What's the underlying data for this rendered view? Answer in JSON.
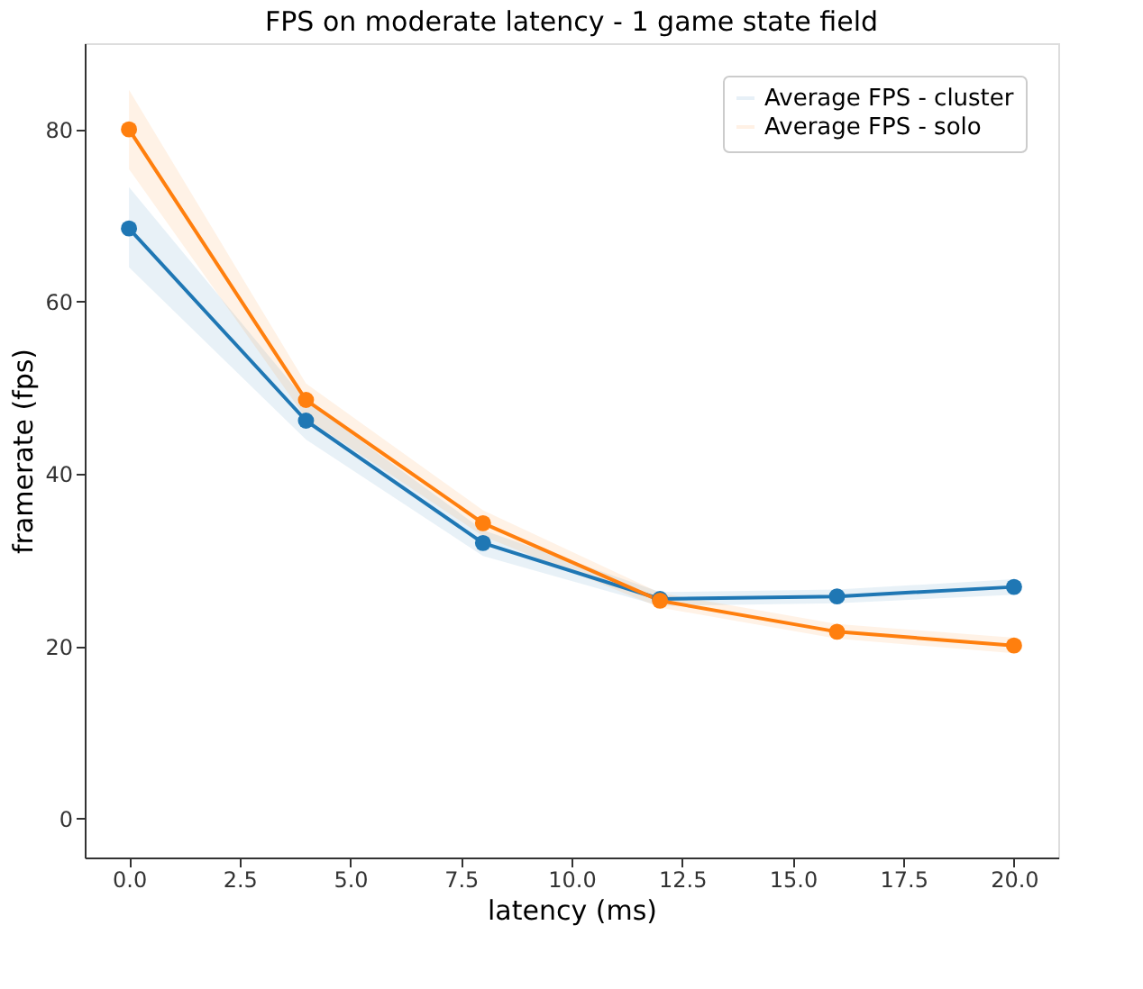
{
  "chart_data": {
    "type": "line",
    "title": "FPS on moderate latency - 1 game state field",
    "xlabel": "latency (ms)",
    "ylabel": "framerate (fps)",
    "x": [
      0,
      4,
      8,
      12,
      16,
      20
    ],
    "series": [
      {
        "name": "Average FPS - cluster",
        "color": "#1f77b4",
        "values": [
          68.5,
          46.2,
          32.0,
          25.5,
          25.8,
          26.9
        ],
        "lower": [
          64.0,
          44.0,
          30.5,
          24.7,
          25.0,
          26.0
        ],
        "upper": [
          73.3,
          48.5,
          33.5,
          26.3,
          26.6,
          27.8
        ]
      },
      {
        "name": "Average FPS - solo",
        "color": "#ff7f0e",
        "values": [
          80.0,
          48.6,
          34.3,
          25.3,
          21.7,
          20.1
        ],
        "lower": [
          75.4,
          46.5,
          32.8,
          24.5,
          20.9,
          19.2
        ],
        "upper": [
          84.6,
          50.5,
          35.8,
          26.2,
          22.6,
          21.0
        ]
      }
    ],
    "xlim": [
      -1,
      21
    ],
    "ylim": [
      -4.5,
      90
    ],
    "xticks": [
      {
        "value": 0,
        "label": "0.0"
      },
      {
        "value": 2.5,
        "label": "2.5"
      },
      {
        "value": 5,
        "label": "5.0"
      },
      {
        "value": 7.5,
        "label": "7.5"
      },
      {
        "value": 10,
        "label": "10.0"
      },
      {
        "value": 12.5,
        "label": "12.5"
      },
      {
        "value": 15,
        "label": "15.0"
      },
      {
        "value": 17.5,
        "label": "17.5"
      },
      {
        "value": 20,
        "label": "20.0"
      }
    ],
    "yticks": [
      0,
      20,
      40,
      60,
      80
    ],
    "legend": "top right",
    "marker": "circle",
    "line_style": "solid",
    "grid": false
  }
}
